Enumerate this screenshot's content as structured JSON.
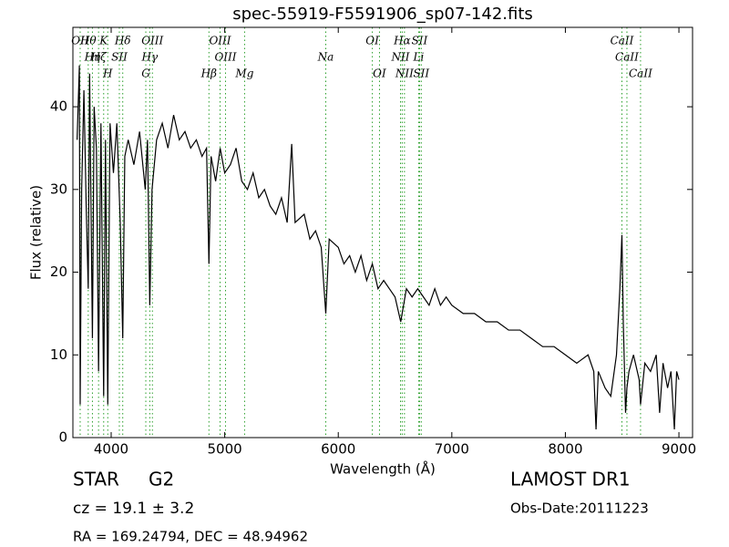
{
  "chart_data": {
    "type": "line",
    "title": "spec-55919-F5591906_sp07-142.fits",
    "xlabel": "Wavelength (Å)",
    "ylabel": "Flux (relative)",
    "xlim": [
      3663,
      9120
    ],
    "ylim": [
      0,
      49.6
    ],
    "xticks": [
      4000,
      5000,
      6000,
      7000,
      8000,
      9000
    ],
    "yticks": [
      0,
      10,
      20,
      30,
      40
    ],
    "color": "#000000",
    "line_color": "#2ca02c",
    "x": [
      3700,
      3720,
      3727,
      3740,
      3760,
      3780,
      3798,
      3810,
      3835,
      3850,
      3870,
      3889,
      3910,
      3934,
      3950,
      3970,
      3990,
      4020,
      4050,
      4080,
      4102,
      4120,
      4150,
      4200,
      4250,
      4300,
      4320,
      4340,
      4360,
      4400,
      4450,
      4500,
      4550,
      4600,
      4650,
      4700,
      4750,
      4800,
      4840,
      4861,
      4880,
      4920,
      4960,
      5000,
      5050,
      5100,
      5150,
      5200,
      5250,
      5300,
      5350,
      5400,
      5450,
      5500,
      5550,
      5590,
      5620,
      5700,
      5750,
      5800,
      5850,
      5890,
      5920,
      6000,
      6050,
      6100,
      6150,
      6200,
      6250,
      6300,
      6350,
      6400,
      6450,
      6500,
      6550,
      6600,
      6650,
      6700,
      6750,
      6800,
      6850,
      6900,
      6950,
      7000,
      7100,
      7200,
      7300,
      7400,
      7500,
      7600,
      7700,
      7800,
      7900,
      8000,
      8100,
      8200,
      8250,
      8270,
      8290,
      8350,
      8400,
      8450,
      8480,
      8498,
      8510,
      8530,
      8542,
      8560,
      8600,
      8650,
      8662,
      8700,
      8750,
      8800,
      8830,
      8860,
      8900,
      8930,
      8960,
      8980,
      9000
    ],
    "values": [
      36,
      45,
      4,
      30,
      42,
      28,
      18,
      44,
      12,
      40,
      35,
      8,
      38,
      5,
      36,
      4,
      38,
      32,
      38,
      26,
      12,
      34,
      36,
      33,
      37,
      30,
      36,
      16,
      30,
      36,
      38,
      35,
      39,
      36,
      37,
      35,
      36,
      34,
      35,
      21,
      34,
      31,
      35,
      32,
      33,
      35,
      31,
      30,
      32,
      29,
      30,
      28,
      27,
      29,
      26,
      35.5,
      26,
      27,
      24,
      25,
      23,
      15,
      24,
      23,
      21,
      22,
      20,
      22,
      19,
      21,
      18,
      19,
      18,
      17,
      14,
      18,
      17,
      18,
      17,
      16,
      18,
      16,
      17,
      16,
      15,
      15,
      14,
      14,
      13,
      13,
      12,
      11,
      11,
      10,
      9,
      10,
      8,
      1,
      8,
      6,
      5,
      10,
      18,
      24.5,
      14,
      3,
      6,
      8,
      10,
      7,
      4,
      9,
      8,
      10,
      3,
      9,
      6,
      8,
      1,
      8,
      7
    ],
    "lines": [
      {
        "label": "OII",
        "x": 3727
      },
      {
        "label": "Hθ",
        "x": 3798
      },
      {
        "label": "K",
        "x": 3934
      },
      {
        "label": "Hδ",
        "x": 4102
      },
      {
        "label": "OIII",
        "x": 4363
      },
      {
        "label": "OIII",
        "x": 4959
      },
      {
        "label": "OI",
        "x": 6300
      },
      {
        "label": "Hα",
        "x": 6563
      },
      {
        "label": "SII",
        "x": 6716
      },
      {
        "label": "CaII",
        "x": 8498
      },
      {
        "label": "Hη",
        "x": 3835
      },
      {
        "label": "Hζ",
        "x": 3889
      },
      {
        "label": "SII",
        "x": 4072
      },
      {
        "label": "Hγ",
        "x": 4340
      },
      {
        "label": "OIII",
        "x": 5007
      },
      {
        "label": "Na",
        "x": 5890
      },
      {
        "label": "NII",
        "x": 6548
      },
      {
        "label": "Li",
        "x": 6708
      },
      {
        "label": "CaII",
        "x": 8542
      },
      {
        "label": "H",
        "x": 3970
      },
      {
        "label": "G",
        "x": 4305
      },
      {
        "label": "Hβ",
        "x": 4861
      },
      {
        "label": "Mg",
        "x": 5175
      },
      {
        "label": "OI",
        "x": 6363
      },
      {
        "label": "NII",
        "x": 6583
      },
      {
        "label": "SII",
        "x": 6731
      },
      {
        "label": "CaII",
        "x": 8662
      }
    ],
    "info": {
      "class": "STAR",
      "subclass": "G2",
      "cz": "cz = 19.1 ± 3.2",
      "coords": "RA = 169.24794, DEC = 48.94962",
      "survey": "LAMOST DR1",
      "obs_date": "Obs-Date:20111223"
    }
  }
}
